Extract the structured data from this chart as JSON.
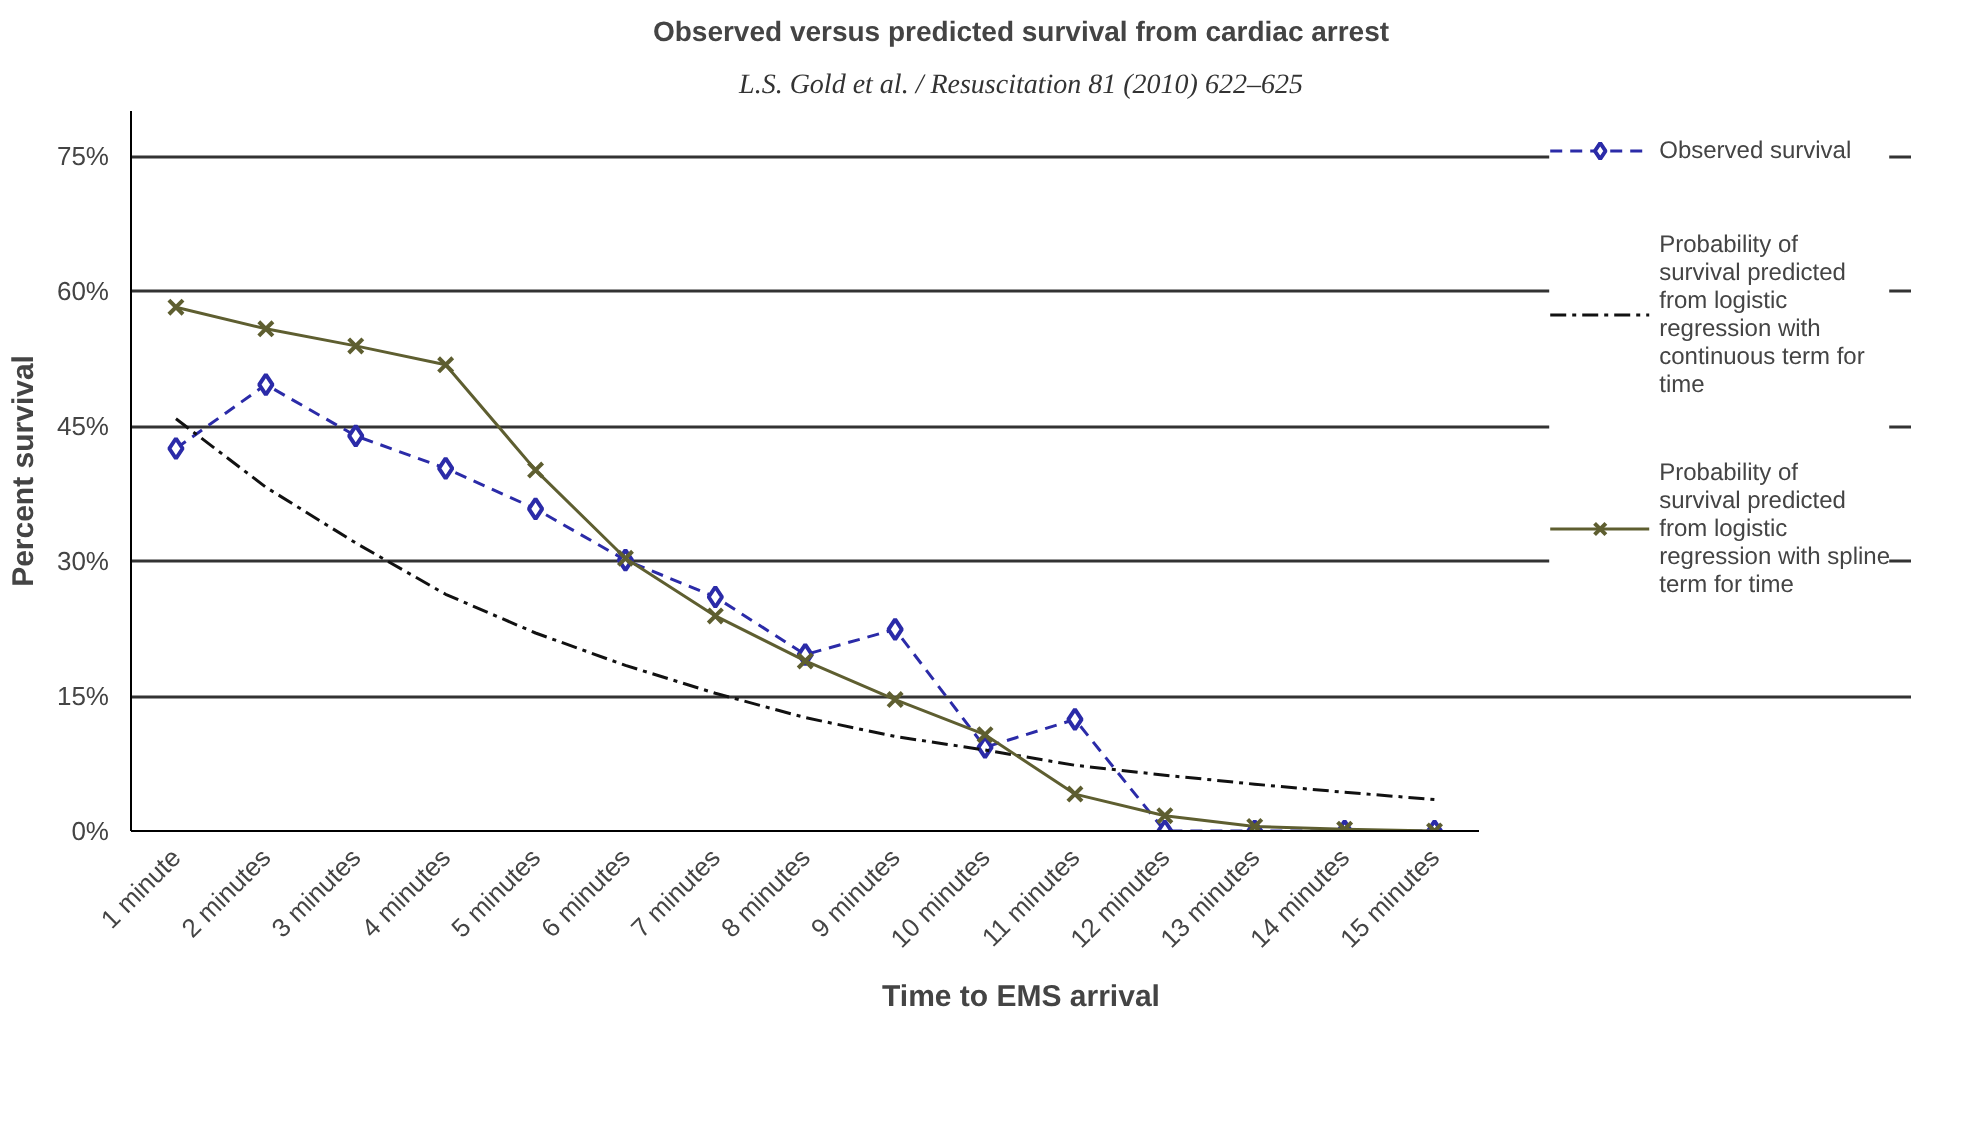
{
  "chart_data": {
    "type": "line",
    "title": "Observed versus predicted survival from cardiac arrest",
    "annotations": [
      "L.S. Gold et al. / Resuscitation 81 (2010) 622–625"
    ],
    "xlabel": "Time to EMS arrival",
    "ylabel": "Percent survival",
    "categories": [
      "1 minute",
      "2 minutes",
      "3 minutes",
      "4 minutes",
      "5 minutes",
      "6 minutes",
      "7 minutes",
      "8 minutes",
      "9 minutes",
      "10 minutes",
      "11 minutes",
      "12 minutes",
      "13 minutes",
      "14 minutes",
      "15 minutes"
    ],
    "series": [
      {
        "name": "Observed survival",
        "color": "#2b2ba8",
        "marker": "diamond",
        "line_style": "dashed",
        "values": [
          42.5,
          49.6,
          43.9,
          40.3,
          35.8,
          30.1,
          26.0,
          19.6,
          22.4,
          9.3,
          12.4,
          0,
          0,
          0,
          0
        ]
      },
      {
        "name": "Probability of survival predicted from logistic regression with continuous term for time",
        "color": "#111111",
        "marker": "none",
        "line_style": "dashdot",
        "values": [
          45.8,
          38.2,
          32.0,
          26.3,
          22.0,
          18.4,
          15.3,
          12.6,
          10.5,
          9.0,
          7.3,
          6.2,
          5.2,
          4.3,
          3.5
        ]
      },
      {
        "name": "Probability of survival predicted from logistic regression with spline term for time",
        "color": "#5e5e30",
        "marker": "x",
        "line_style": "solid",
        "values": [
          58.2,
          55.8,
          53.9,
          51.8,
          40.1,
          30.3,
          23.9,
          18.9,
          14.6,
          10.7,
          4.1,
          1.7,
          0.5,
          0.2,
          0
        ]
      }
    ],
    "ylim": [
      0,
      80
    ],
    "yticks": [
      {
        "value": 0,
        "label": "0%"
      },
      {
        "value": 15,
        "label": "15%"
      },
      {
        "value": 30,
        "label": "30%"
      },
      {
        "value": 45,
        "label": "45%"
      },
      {
        "value": 60,
        "label": "60%"
      },
      {
        "value": 75,
        "label": "75%"
      }
    ],
    "grid": "y",
    "legend": "right"
  }
}
